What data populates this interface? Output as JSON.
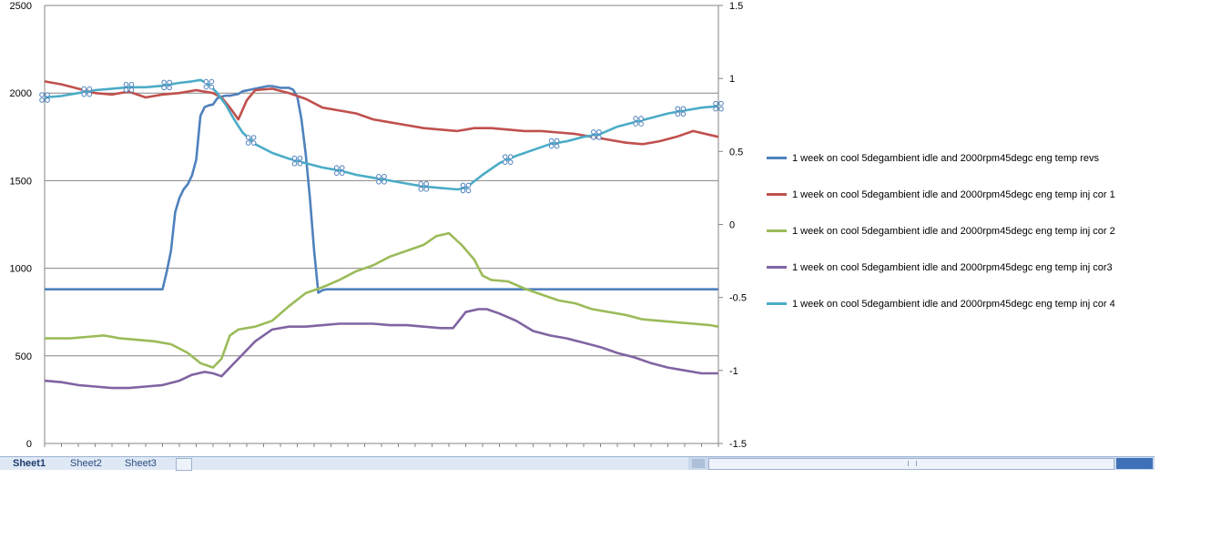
{
  "chart_data": {
    "type": "line",
    "left_axis": {
      "ticks": [
        "0",
        "500",
        "1000",
        "1500",
        "2000",
        "2500"
      ],
      "ylim": [
        0,
        2500
      ]
    },
    "right_axis": {
      "ticks": [
        "-1.5",
        "-1",
        "-0.5",
        "0",
        "0.5",
        "1",
        "1.5"
      ],
      "ylim": [
        -1.5,
        1.5
      ]
    },
    "grid": true,
    "legend_position": "right",
    "x_count": 161,
    "series": [
      {
        "name": "1 week on  cool   5degambient idle and 2000rpm45degc eng temp revs",
        "color": "#4f81bd",
        "axis": "left",
        "points": [
          [
            0,
            880
          ],
          [
            10,
            880
          ],
          [
            20,
            880
          ],
          [
            28,
            880
          ],
          [
            40,
            882
          ],
          [
            50,
            884
          ],
          [
            60,
            880
          ],
          [
            70,
            880
          ],
          [
            80,
            882
          ],
          [
            90,
            880
          ],
          [
            100,
            882
          ],
          [
            110,
            878
          ],
          [
            120,
            880
          ],
          [
            130,
            884
          ],
          [
            140,
            882
          ],
          [
            150,
            880
          ],
          [
            160,
            878
          ]
        ],
        "values": [
          880,
          880,
          880,
          880,
          880,
          880,
          880,
          880,
          880,
          880,
          880,
          880,
          880,
          880,
          880,
          880,
          880,
          880,
          880,
          880,
          880,
          880,
          880,
          880,
          880,
          880,
          880,
          880,
          880,
          980,
          1100,
          1320,
          1400,
          1450,
          1480,
          1530,
          1620,
          1870,
          1920,
          1930,
          1935,
          1970,
          1980,
          1985,
          1985,
          1990,
          1995,
          2010,
          2015,
          2020,
          2025,
          2030,
          2035,
          2040,
          2040,
          2035,
          2030,
          2030,
          2030,
          2020,
          1980,
          1850,
          1650,
          1400,
          1100,
          860,
          875,
          880,
          880,
          880,
          880,
          880,
          880,
          880,
          880,
          880,
          880,
          880,
          880,
          880,
          880,
          880,
          880,
          880,
          880,
          880,
          880,
          880,
          880,
          880,
          880,
          880,
          880,
          880,
          880,
          880,
          880,
          880,
          880,
          880,
          880,
          880,
          880,
          880,
          880,
          880,
          880,
          880,
          880,
          880,
          880,
          880,
          880,
          880,
          880,
          880,
          880,
          880,
          880,
          880,
          880,
          880,
          880,
          880,
          880,
          880,
          880,
          880,
          880,
          880,
          880,
          880,
          880,
          880,
          880,
          880,
          880,
          880,
          880,
          880,
          880,
          880,
          880,
          880,
          880,
          880,
          880,
          880,
          880,
          880,
          880,
          880,
          880,
          880,
          880,
          880,
          880,
          880,
          880,
          880,
          880
        ]
      },
      {
        "name": "1 week on  cool   5degambient idle and 2000rpm45degc eng temp inj cor 1",
        "color": "#c0504d",
        "axis": "right",
        "values": [
          1.0,
          0.99,
          0.99,
          0.98,
          0.96,
          0.95,
          0.95,
          0.94,
          0.93,
          0.93,
          0.93,
          0.92,
          0.91,
          0.91,
          0.91,
          0.9,
          0.89,
          0.89,
          0.9,
          0.91,
          0.9,
          0.89,
          0.88,
          0.89,
          0.9,
          0.9,
          0.89,
          0.88,
          0.87,
          0.85,
          0.83,
          0.82,
          0.86,
          0.89,
          0.92,
          0.93,
          0.92,
          0.9,
          0.85,
          0.8,
          0.75,
          0.72,
          0.82,
          0.9,
          0.93,
          0.92,
          0.89,
          0.87,
          0.84,
          0.82,
          0.79,
          0.78,
          0.76,
          0.74,
          0.72,
          0.71,
          0.69,
          0.67,
          0.66,
          0.64,
          0.63,
          0.62,
          0.6,
          0.6,
          0.6,
          0.59,
          0.58,
          0.59,
          0.6,
          0.6,
          0.6,
          0.61,
          0.61,
          0.61,
          0.62,
          0.62,
          0.61,
          0.6,
          0.59,
          0.58,
          0.58,
          0.57,
          0.57,
          0.56,
          0.56,
          0.55,
          0.55,
          0.56,
          0.56,
          0.55,
          0.53,
          0.5,
          0.49,
          0.48,
          0.49,
          0.51,
          0.53,
          0.55,
          0.57,
          0.59,
          0.61,
          0.63,
          0.65,
          0.67,
          0.68,
          0.69,
          0.71,
          0.72,
          0.73,
          0.73,
          0.72,
          0.73,
          0.73,
          0.74,
          0.74,
          0.74,
          0.73,
          0.73,
          0.74,
          0.74,
          0.75,
          0.76,
          0.77,
          0.77,
          0.78,
          0.78,
          0.78,
          0.79,
          0.8,
          0.81,
          0.81,
          0.81,
          0.81,
          0.81,
          0.82,
          0.82,
          0.82,
          0.82,
          0.82,
          0.83,
          0.83,
          0.83,
          0.83,
          0.84,
          0.84,
          0.84,
          0.84,
          0.84,
          0.85,
          0.85,
          0.85,
          0.85,
          0.85,
          0.85,
          0.86,
          0.86,
          0.86,
          0.86,
          0.87,
          0.87,
          0.86
        ],
        "points": [
          [
            0,
            0.98
          ],
          [
            4,
            0.96
          ],
          [
            8,
            0.93
          ],
          [
            12,
            0.9
          ],
          [
            16,
            0.89
          ],
          [
            20,
            0.91
          ],
          [
            24,
            0.87
          ],
          [
            28,
            0.89
          ],
          [
            32,
            0.9
          ],
          [
            36,
            0.92
          ],
          [
            40,
            0.9
          ],
          [
            42,
            0.87
          ],
          [
            44,
            0.8
          ],
          [
            46,
            0.72
          ],
          [
            48,
            0.85
          ],
          [
            50,
            0.92
          ],
          [
            54,
            0.93
          ],
          [
            58,
            0.9
          ],
          [
            62,
            0.86
          ],
          [
            66,
            0.8
          ],
          [
            70,
            0.78
          ],
          [
            74,
            0.76
          ],
          [
            78,
            0.72
          ],
          [
            82,
            0.7
          ],
          [
            86,
            0.68
          ],
          [
            90,
            0.66
          ],
          [
            94,
            0.65
          ],
          [
            98,
            0.64
          ],
          [
            102,
            0.66
          ],
          [
            106,
            0.66
          ],
          [
            110,
            0.65
          ],
          [
            114,
            0.64
          ],
          [
            118,
            0.64
          ],
          [
            122,
            0.63
          ],
          [
            126,
            0.62
          ],
          [
            130,
            0.6
          ],
          [
            134,
            0.58
          ],
          [
            138,
            0.56
          ],
          [
            142,
            0.55
          ],
          [
            146,
            0.57
          ],
          [
            150,
            0.6
          ],
          [
            154,
            0.64
          ],
          [
            160,
            0.6
          ]
        ]
      },
      {
        "name": "1 week on  cool   5degambient idle and 2000rpm45degc eng temp inj cor 2",
        "color": "#9bbb59",
        "axis": "right",
        "points": [
          [
            0,
            -0.78
          ],
          [
            6,
            -0.78
          ],
          [
            10,
            -0.77
          ],
          [
            14,
            -0.76
          ],
          [
            18,
            -0.78
          ],
          [
            22,
            -0.79
          ],
          [
            26,
            -0.8
          ],
          [
            30,
            -0.82
          ],
          [
            34,
            -0.88
          ],
          [
            37,
            -0.95
          ],
          [
            40,
            -0.98
          ],
          [
            42,
            -0.92
          ],
          [
            44,
            -0.76
          ],
          [
            46,
            -0.72
          ],
          [
            50,
            -0.7
          ],
          [
            54,
            -0.66
          ],
          [
            58,
            -0.56
          ],
          [
            62,
            -0.47
          ],
          [
            66,
            -0.43
          ],
          [
            70,
            -0.38
          ],
          [
            74,
            -0.32
          ],
          [
            78,
            -0.28
          ],
          [
            82,
            -0.22
          ],
          [
            86,
            -0.18
          ],
          [
            90,
            -0.14
          ],
          [
            93,
            -0.08
          ],
          [
            96,
            -0.06
          ],
          [
            99,
            -0.14
          ],
          [
            102,
            -0.24
          ],
          [
            104,
            -0.35
          ],
          [
            106,
            -0.38
          ],
          [
            110,
            -0.39
          ],
          [
            114,
            -0.44
          ],
          [
            118,
            -0.48
          ],
          [
            122,
            -0.52
          ],
          [
            126,
            -0.54
          ],
          [
            130,
            -0.58
          ],
          [
            134,
            -0.6
          ],
          [
            138,
            -0.62
          ],
          [
            142,
            -0.65
          ],
          [
            146,
            -0.66
          ],
          [
            150,
            -0.67
          ],
          [
            154,
            -0.68
          ],
          [
            158,
            -0.69
          ],
          [
            160,
            -0.7
          ]
        ]
      },
      {
        "name": "1 week on  cool   5degambient idle and 2000rpm45degc eng temp inj cor3",
        "color": "#8064a2",
        "axis": "right",
        "points": [
          [
            0,
            -1.07
          ],
          [
            4,
            -1.08
          ],
          [
            8,
            -1.1
          ],
          [
            12,
            -1.11
          ],
          [
            16,
            -1.12
          ],
          [
            20,
            -1.12
          ],
          [
            24,
            -1.11
          ],
          [
            28,
            -1.1
          ],
          [
            32,
            -1.07
          ],
          [
            35,
            -1.03
          ],
          [
            38,
            -1.01
          ],
          [
            40,
            -1.02
          ],
          [
            42,
            -1.04
          ],
          [
            44,
            -0.98
          ],
          [
            46,
            -0.92
          ],
          [
            50,
            -0.8
          ],
          [
            54,
            -0.72
          ],
          [
            58,
            -0.7
          ],
          [
            62,
            -0.7
          ],
          [
            66,
            -0.69
          ],
          [
            70,
            -0.68
          ],
          [
            74,
            -0.68
          ],
          [
            78,
            -0.68
          ],
          [
            82,
            -0.69
          ],
          [
            86,
            -0.69
          ],
          [
            90,
            -0.7
          ],
          [
            94,
            -0.71
          ],
          [
            97,
            -0.71
          ],
          [
            100,
            -0.6
          ],
          [
            103,
            -0.58
          ],
          [
            105,
            -0.58
          ],
          [
            108,
            -0.61
          ],
          [
            112,
            -0.66
          ],
          [
            116,
            -0.73
          ],
          [
            120,
            -0.76
          ],
          [
            124,
            -0.78
          ],
          [
            128,
            -0.81
          ],
          [
            132,
            -0.84
          ],
          [
            136,
            -0.88
          ],
          [
            140,
            -0.91
          ],
          [
            144,
            -0.95
          ],
          [
            148,
            -0.98
          ],
          [
            152,
            -1.0
          ],
          [
            156,
            -1.02
          ],
          [
            160,
            -1.02
          ]
        ]
      },
      {
        "name": "1 week on  cool   5degambient idle and 2000rpm45degc eng temp inj cor 4",
        "color": "#4bacc6",
        "axis": "right",
        "points": [
          [
            0,
            0.87
          ],
          [
            4,
            0.88
          ],
          [
            8,
            0.9
          ],
          [
            12,
            0.92
          ],
          [
            16,
            0.93
          ],
          [
            20,
            0.94
          ],
          [
            24,
            0.94
          ],
          [
            28,
            0.95
          ],
          [
            32,
            0.97
          ],
          [
            35,
            0.98
          ],
          [
            37,
            0.99
          ],
          [
            39,
            0.96
          ],
          [
            41,
            0.9
          ],
          [
            43,
            0.82
          ],
          [
            45,
            0.72
          ],
          [
            47,
            0.63
          ],
          [
            50,
            0.55
          ],
          [
            54,
            0.49
          ],
          [
            58,
            0.45
          ],
          [
            62,
            0.42
          ],
          [
            66,
            0.39
          ],
          [
            70,
            0.37
          ],
          [
            74,
            0.34
          ],
          [
            78,
            0.32
          ],
          [
            82,
            0.3
          ],
          [
            86,
            0.28
          ],
          [
            90,
            0.26
          ],
          [
            94,
            0.25
          ],
          [
            98,
            0.24
          ],
          [
            100,
            0.25
          ],
          [
            104,
            0.34
          ],
          [
            108,
            0.42
          ],
          [
            112,
            0.47
          ],
          [
            116,
            0.51
          ],
          [
            120,
            0.55
          ],
          [
            124,
            0.57
          ],
          [
            128,
            0.6
          ],
          [
            132,
            0.62
          ],
          [
            136,
            0.67
          ],
          [
            140,
            0.7
          ],
          [
            144,
            0.73
          ],
          [
            148,
            0.76
          ],
          [
            152,
            0.78
          ],
          [
            156,
            0.8
          ],
          [
            160,
            0.81
          ]
        ],
        "marker_x": [
          0,
          10,
          20,
          29,
          39,
          49,
          60,
          70,
          80,
          90,
          100,
          110,
          121,
          131,
          141,
          151,
          161
        ]
      }
    ]
  },
  "sheet_tabs": {
    "sheet1": "Sheet1",
    "sheet2": "Sheet2",
    "sheet3": "Sheet3"
  }
}
